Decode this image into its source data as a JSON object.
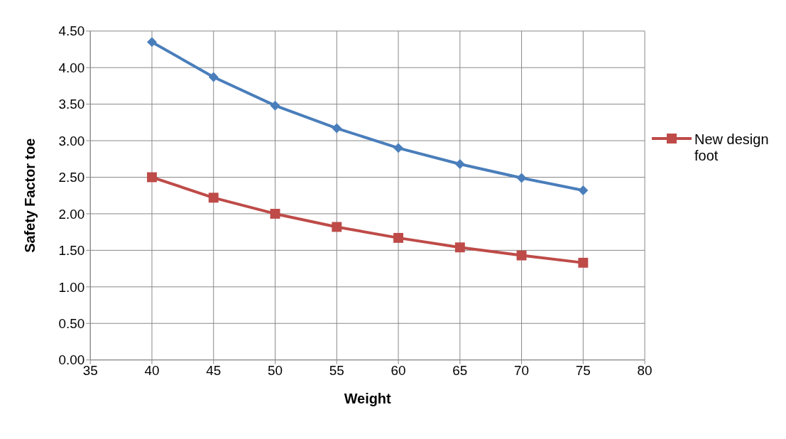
{
  "chart_data": {
    "type": "line",
    "xlabel": "Weight",
    "ylabel": "Safety Factor  toe",
    "x": [
      40,
      45,
      50,
      55,
      60,
      65,
      70,
      75
    ],
    "series": [
      {
        "color": "#4a7ebb",
        "marker": "diamond",
        "values": [
          4.35,
          3.87,
          3.48,
          3.17,
          2.9,
          2.68,
          2.49,
          2.32
        ]
      },
      {
        "name": "New design foot",
        "color": "#be4b48",
        "marker": "square",
        "values": [
          2.5,
          2.22,
          2.0,
          1.82,
          1.67,
          1.54,
          1.43,
          1.33
        ]
      }
    ],
    "xlim": [
      35,
      80
    ],
    "xticks": [
      35,
      40,
      45,
      50,
      55,
      60,
      65,
      70,
      75,
      80
    ],
    "ylim": [
      0,
      4.5
    ],
    "yticks": [
      {
        "value": 0,
        "label": "0.00"
      },
      {
        "value": 0.5,
        "label": "0.50"
      },
      {
        "value": 1,
        "label": "1.00"
      },
      {
        "value": 1.5,
        "label": "1.50"
      },
      {
        "value": 2,
        "label": "2.00"
      },
      {
        "value": 2.5,
        "label": "2.50"
      },
      {
        "value": 3,
        "label": "3.00"
      },
      {
        "value": 3.5,
        "label": "3.50"
      },
      {
        "value": 4,
        "label": "4.00"
      },
      {
        "value": 4.5,
        "label": "4.50"
      }
    ],
    "grid": true,
    "legend": "right",
    "line_style": "solid"
  }
}
